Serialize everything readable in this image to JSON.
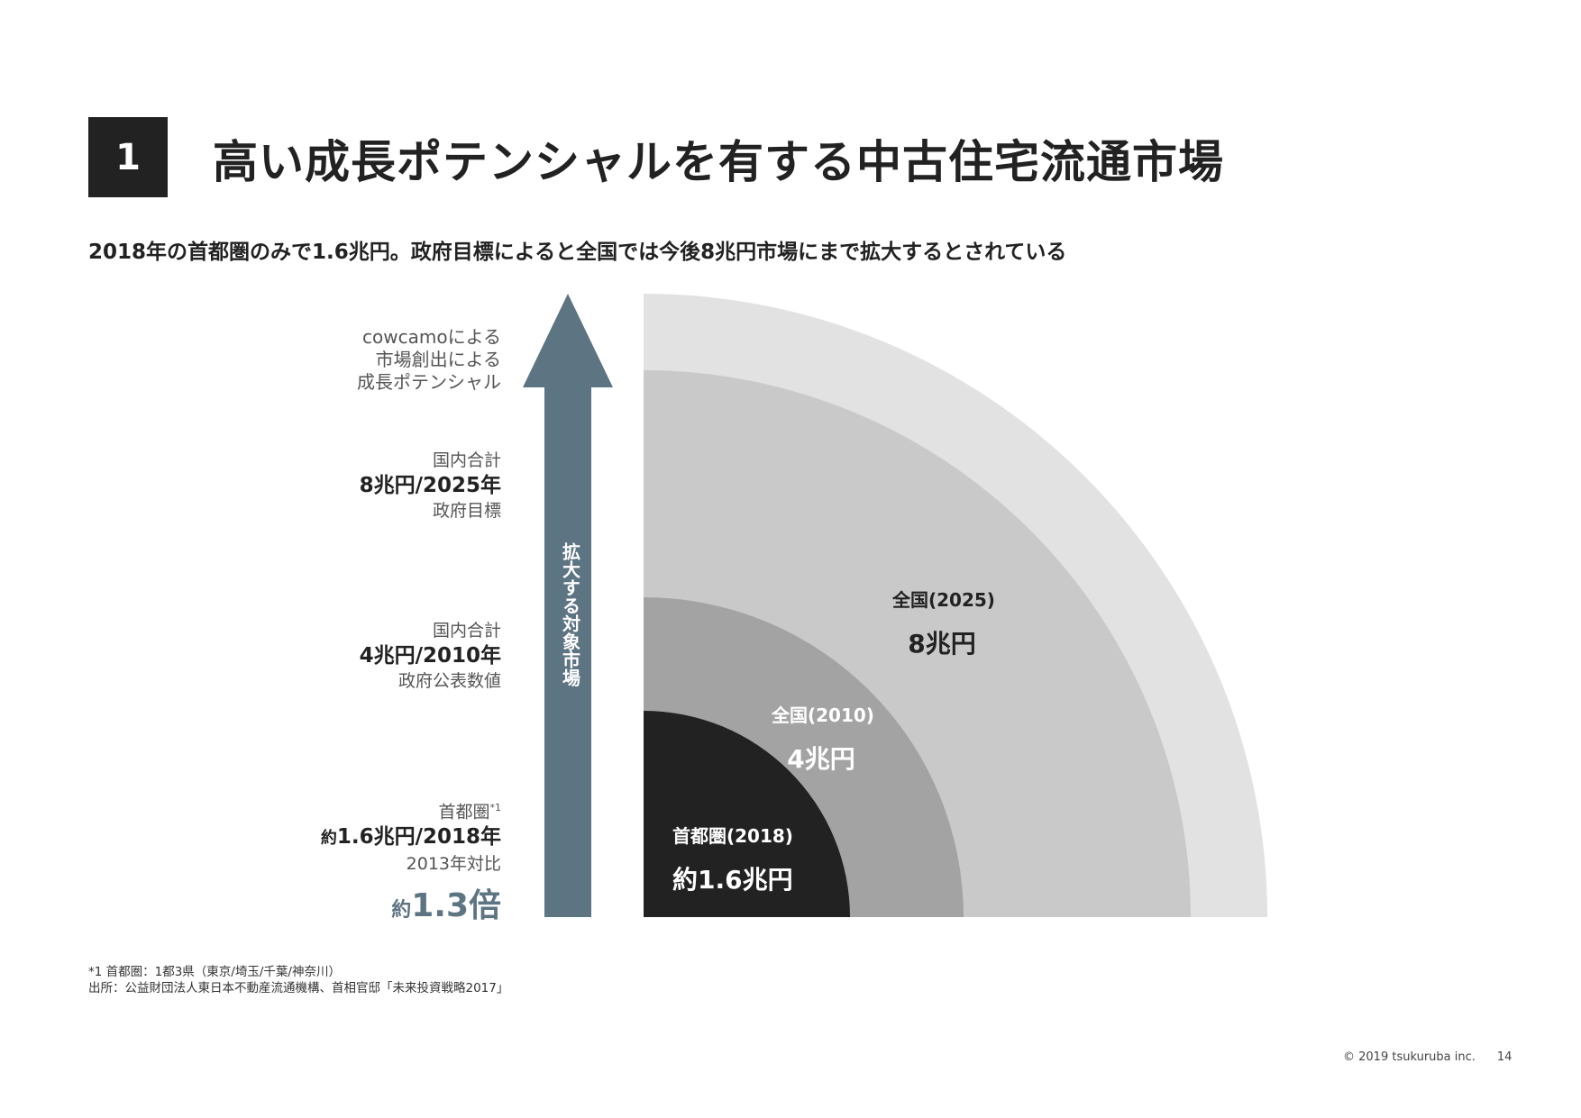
{
  "header": {
    "section_number": "1",
    "title": "高い成長ポテンシャルを有する中古住宅流通市場",
    "subtitle": "2018年の首都圏のみで1.6兆円。政府目標によると全国では今後8兆円市場にまで拡大するとされている"
  },
  "left_labels": {
    "potential": [
      "cowcamoによる",
      "市場創出による",
      "成長ポテンシャル"
    ],
    "national_2025": {
      "top": "国内合計",
      "main": "8兆円/2025年",
      "bottom": "政府目標"
    },
    "national_2010": {
      "top": "国内合計",
      "main": "4兆円/2010年",
      "bottom": "政府公表数値"
    },
    "metro_2018": {
      "top": "首都圏",
      "sup": "*1",
      "prefix": "約",
      "main": "1.6兆円/2018年",
      "bottom": "2013年対比",
      "ratio_prefix": "約",
      "ratio": "1.3倍"
    }
  },
  "arrow": {
    "label": "拡大する対象市場",
    "color": "#5d7483"
  },
  "rings": [
    {
      "name": "首都圏(2018)",
      "value": "約1.6兆円",
      "color": "#222222",
      "level": 1.6
    },
    {
      "name": "全国(2010)",
      "value": "4兆円",
      "color": "#a3a3a3",
      "level": 4
    },
    {
      "name": "全国(2025)",
      "value": "8兆円",
      "color": "#c9c9c9",
      "level": 8
    },
    {
      "name": "",
      "value": "",
      "color": "#e2e2e2"
    }
  ],
  "notes": [
    "*1 首都圏：1都3県（東京/埼玉/千葉/神奈川）",
    "出所：公益財団法人東日本不動産流通機構、首相官邸「未来投資戦略2017」"
  ],
  "footer": {
    "copyright": "© 2019 tsukuruba inc.",
    "page": "14"
  }
}
